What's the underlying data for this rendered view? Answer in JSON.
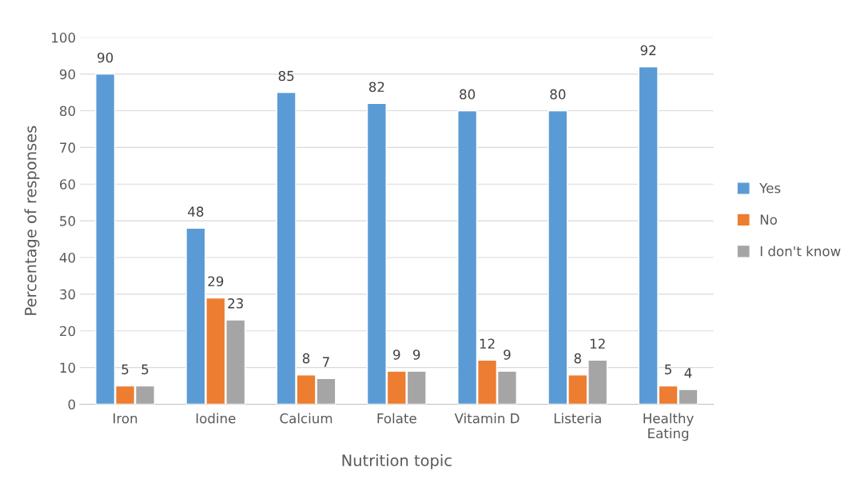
{
  "chart_data": {
    "type": "bar",
    "xlabel": "Nutrition topic",
    "ylabel": "Percentage of responses",
    "categories": [
      "Iron",
      "Iodine",
      "Calcium",
      "Folate",
      "Vitamin D",
      "Listeria",
      "Healthy Eating"
    ],
    "series": [
      {
        "name": "Yes",
        "color": "#5b9bd5",
        "values": [
          90,
          48,
          85,
          82,
          80,
          80,
          92
        ]
      },
      {
        "name": "No",
        "color": "#ed7d31",
        "values": [
          5,
          29,
          8,
          9,
          12,
          8,
          5
        ]
      },
      {
        "name": "I don't know",
        "color": "#a5a5a5",
        "values": [
          5,
          23,
          7,
          9,
          9,
          12,
          4
        ]
      }
    ],
    "ylim": [
      0,
      100
    ],
    "yticks": [
      0,
      10,
      20,
      30,
      40,
      50,
      60,
      70,
      80,
      90,
      100
    ],
    "grid": "y",
    "legend": "right",
    "data_labels": true
  }
}
